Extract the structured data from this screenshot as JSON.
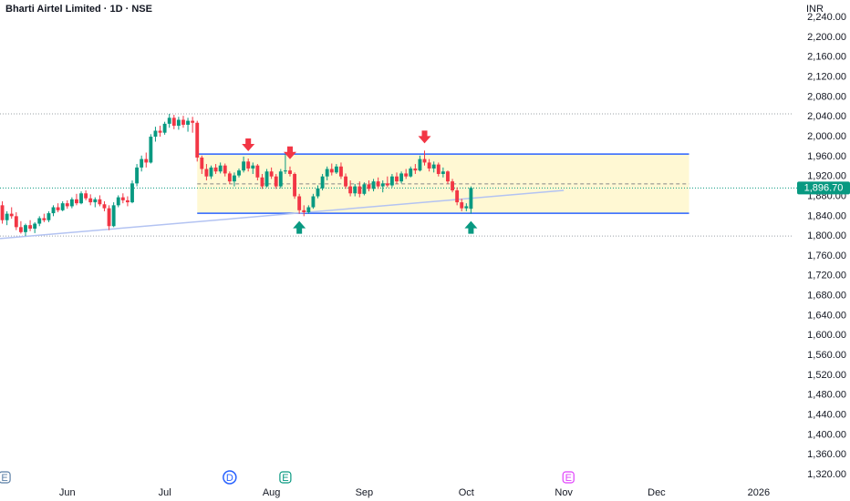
{
  "chart_data": {
    "type": "candlestick",
    "title": "Bharti Airtel Limited · 1D · NSE",
    "currency": "INR",
    "up_color": "#089981",
    "down_color": "#f23645",
    "open": [
      1862,
      1832,
      1845,
      1840,
      1818,
      1808,
      1822,
      1815,
      1825,
      1836,
      1832,
      1846,
      1858,
      1852,
      1866,
      1860,
      1874,
      1866,
      1886,
      1876,
      1868,
      1874,
      1864,
      1856,
      1820,
      1862,
      1878,
      1872,
      1868,
      1906,
      1938,
      1955,
      1948,
      2000,
      2012,
      2008,
      2026,
      2038,
      2022,
      2034,
      2024,
      2032,
      2028,
      1958,
      1935,
      1920,
      1938,
      1930,
      1942,
      1926,
      1910,
      1922,
      1932,
      1950,
      1936,
      1942,
      1918,
      1900,
      1930,
      1920,
      1900,
      1930,
      1932,
      1925,
      1880,
      1852,
      1848,
      1858,
      1880,
      1896,
      1920,
      1935,
      1928,
      1940,
      1920,
      1900,
      1886,
      1900,
      1885,
      1904,
      1895,
      1910,
      1900,
      1906,
      1902,
      1920,
      1910,
      1926,
      1920,
      1936,
      1932,
      1955,
      1948,
      1936,
      1944,
      1925,
      1930,
      1910,
      1892,
      1868,
      1856,
      1855
    ],
    "high": [
      1870,
      1850,
      1858,
      1848,
      1830,
      1825,
      1832,
      1828,
      1840,
      1845,
      1850,
      1862,
      1866,
      1870,
      1872,
      1878,
      1885,
      1890,
      1892,
      1884,
      1878,
      1882,
      1870,
      1862,
      1868,
      1882,
      1886,
      1880,
      1912,
      1945,
      1962,
      1968,
      2005,
      2020,
      2022,
      2030,
      2046,
      2044,
      2040,
      2042,
      2038,
      2040,
      2032,
      1962,
      1945,
      1942,
      1945,
      1948,
      1946,
      1930,
      1928,
      1936,
      1960,
      1956,
      1948,
      1945,
      1925,
      1935,
      1938,
      1925,
      1935,
      1965,
      1940,
      1928,
      1885,
      1862,
      1862,
      1885,
      1902,
      1925,
      1940,
      1946,
      1945,
      1948,
      1926,
      1912,
      1905,
      1910,
      1908,
      1912,
      1915,
      1918,
      1912,
      1920,
      1925,
      1928,
      1930,
      1935,
      1940,
      1945,
      1962,
      1972,
      1955,
      1950,
      1948,
      1938,
      1932,
      1915,
      1898,
      1875,
      1866,
      1900
    ],
    "low": [
      1825,
      1822,
      1835,
      1812,
      1805,
      1800,
      1810,
      1806,
      1820,
      1828,
      1828,
      1840,
      1848,
      1850,
      1855,
      1856,
      1862,
      1864,
      1872,
      1862,
      1858,
      1860,
      1850,
      1812,
      1818,
      1858,
      1866,
      1860,
      1866,
      1900,
      1930,
      1938,
      1946,
      1990,
      2000,
      2004,
      2018,
      2015,
      2014,
      2018,
      2010,
      2008,
      1950,
      1925,
      1912,
      1915,
      1925,
      1926,
      1920,
      1905,
      1900,
      1918,
      1928,
      1930,
      1925,
      1912,
      1895,
      1898,
      1915,
      1895,
      1896,
      1925,
      1920,
      1875,
      1845,
      1840,
      1845,
      1855,
      1876,
      1892,
      1912,
      1922,
      1925,
      1915,
      1895,
      1880,
      1880,
      1878,
      1882,
      1890,
      1890,
      1895,
      1888,
      1898,
      1898,
      1905,
      1906,
      1915,
      1918,
      1925,
      1930,
      1942,
      1930,
      1928,
      1920,
      1918,
      1905,
      1888,
      1862,
      1850,
      1850,
      1845
    ],
    "close": [
      1832,
      1845,
      1840,
      1818,
      1808,
      1822,
      1815,
      1825,
      1836,
      1832,
      1846,
      1858,
      1852,
      1866,
      1860,
      1874,
      1866,
      1886,
      1876,
      1868,
      1874,
      1864,
      1856,
      1820,
      1862,
      1878,
      1872,
      1868,
      1906,
      1938,
      1955,
      1948,
      2000,
      2012,
      2008,
      2026,
      2038,
      2022,
      2034,
      2024,
      2032,
      2028,
      1958,
      1935,
      1920,
      1938,
      1930,
      1942,
      1926,
      1910,
      1922,
      1932,
      1950,
      1936,
      1942,
      1918,
      1900,
      1930,
      1920,
      1900,
      1930,
      1932,
      1925,
      1880,
      1852,
      1848,
      1858,
      1880,
      1896,
      1920,
      1935,
      1928,
      1940,
      1920,
      1900,
      1886,
      1900,
      1885,
      1904,
      1895,
      1910,
      1900,
      1906,
      1902,
      1920,
      1910,
      1926,
      1920,
      1936,
      1932,
      1955,
      1948,
      1936,
      1944,
      1925,
      1930,
      1910,
      1892,
      1868,
      1856,
      1860,
      1897
    ],
    "xlim": [
      -0.5,
      170.5
    ],
    "xticks": [
      {
        "value": 14,
        "label": "Jun"
      },
      {
        "value": 35,
        "label": "Jul"
      },
      {
        "value": 58,
        "label": "Aug"
      },
      {
        "value": 78,
        "label": "Sep"
      },
      {
        "value": 100,
        "label": "Oct"
      },
      {
        "value": 121,
        "label": "Nov"
      },
      {
        "value": 141,
        "label": "Dec"
      },
      {
        "value": 163,
        "label": "2026"
      }
    ],
    "ylim": [
      1267,
      2275
    ],
    "yticks": [
      {
        "value": 1320,
        "label": "1,320.00"
      },
      {
        "value": 1360,
        "label": "1,360.00"
      },
      {
        "value": 1400,
        "label": "1,400.00"
      },
      {
        "value": 1440,
        "label": "1,440.00"
      },
      {
        "value": 1480,
        "label": "1,480.00"
      },
      {
        "value": 1520,
        "label": "1,520.00"
      },
      {
        "value": 1560,
        "label": "1,560.00"
      },
      {
        "value": 1600,
        "label": "1,600.00"
      },
      {
        "value": 1640,
        "label": "1,640.00"
      },
      {
        "value": 1680,
        "label": "1,680.00"
      },
      {
        "value": 1720,
        "label": "1,720.00"
      },
      {
        "value": 1760,
        "label": "1,760.00"
      },
      {
        "value": 1800,
        "label": "1,800.00"
      },
      {
        "value": 1840,
        "label": "1,840.00"
      },
      {
        "value": 1880,
        "label": "1,880.00"
      },
      {
        "value": 1920,
        "label": "1,920.00"
      },
      {
        "value": 1960,
        "label": "1,960.00"
      },
      {
        "value": 2000,
        "label": "2,000.00"
      },
      {
        "value": 2040,
        "label": "2,040.00"
      },
      {
        "value": 2080,
        "label": "2,080.00"
      },
      {
        "value": 2120,
        "label": "2,120.00"
      },
      {
        "value": 2160,
        "label": "2,160.00"
      },
      {
        "value": 2200,
        "label": "2,200.00"
      },
      {
        "value": 2240,
        "label": "2,240.00"
      }
    ],
    "last_price": {
      "value": 1896.7,
      "label": "1,896.70"
    },
    "levels": [
      2046,
      1800
    ],
    "zone": {
      "top": 1965,
      "bottom": 1846,
      "mid": 1905,
      "start": 42,
      "end": 148
    },
    "trendline": {
      "x": [
        -0.5,
        121
      ],
      "y": [
        1795,
        1892
      ]
    },
    "resistance_touches": [
      53,
      62,
      91
    ],
    "support_touches": [
      64,
      101
    ],
    "events": [
      {
        "label": "E",
        "x": 0.5,
        "color": "#5b7fa6"
      },
      {
        "label": "D",
        "x": 49,
        "color": "#2962ff"
      },
      {
        "label": "E",
        "x": 61,
        "color": "#089981"
      },
      {
        "label": "E",
        "x": 122,
        "color": "#e040fb"
      }
    ]
  }
}
